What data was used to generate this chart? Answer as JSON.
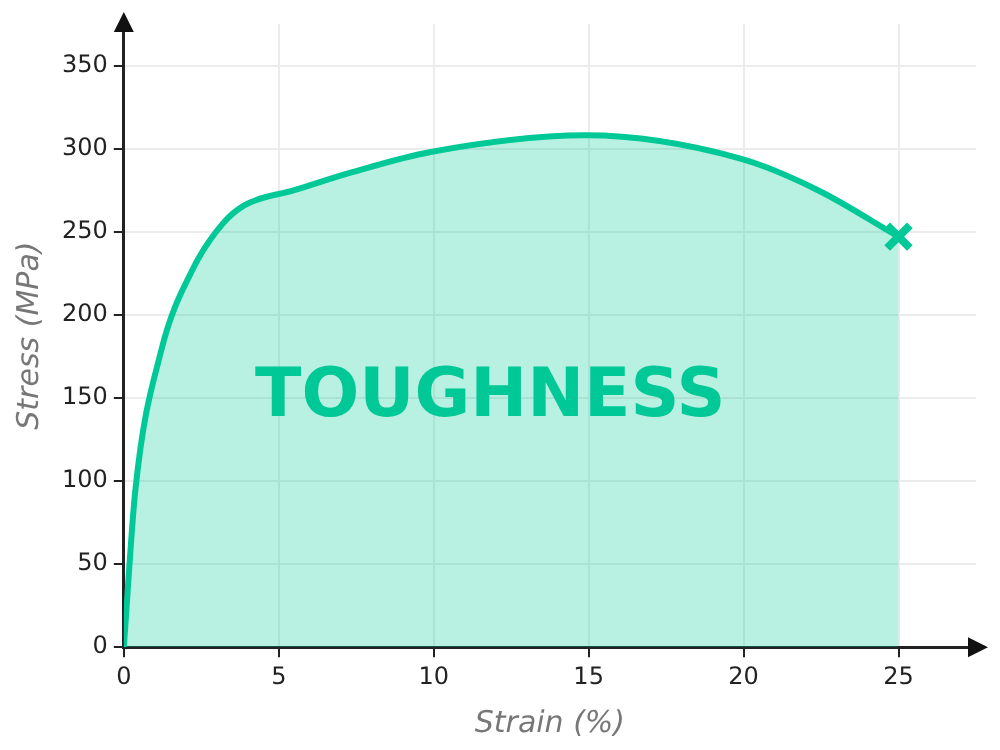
{
  "chart_data": {
    "type": "area",
    "xlabel": "Strain (%)",
    "ylabel": "Stress (MPa)",
    "annotations": [
      "TOUGHNESS"
    ],
    "xlim": [
      0,
      27.5
    ],
    "xticks": [
      0,
      5,
      10,
      15,
      20,
      25
    ],
    "ylim": [
      0,
      375
    ],
    "yticks": [
      0,
      50,
      100,
      150,
      200,
      250,
      300,
      350
    ],
    "grid": true,
    "legend": false,
    "series": [
      {
        "color": "#00c896",
        "marker": "none",
        "x": [
          0,
          0.37,
          1.2,
          2.24,
          3.2,
          3.9,
          5.5,
          7.4,
          9.9,
          14.9,
          19.9,
          22.4,
          25
        ],
        "values": [
          0,
          94,
          178,
          228,
          255,
          266,
          275,
          286,
          298,
          308,
          294,
          275,
          247
        ]
      },
      {
        "type": "scatter",
        "color": "#00c896",
        "marker": "cross",
        "x": [
          25
        ],
        "values": [
          247
        ]
      }
    ]
  }
}
